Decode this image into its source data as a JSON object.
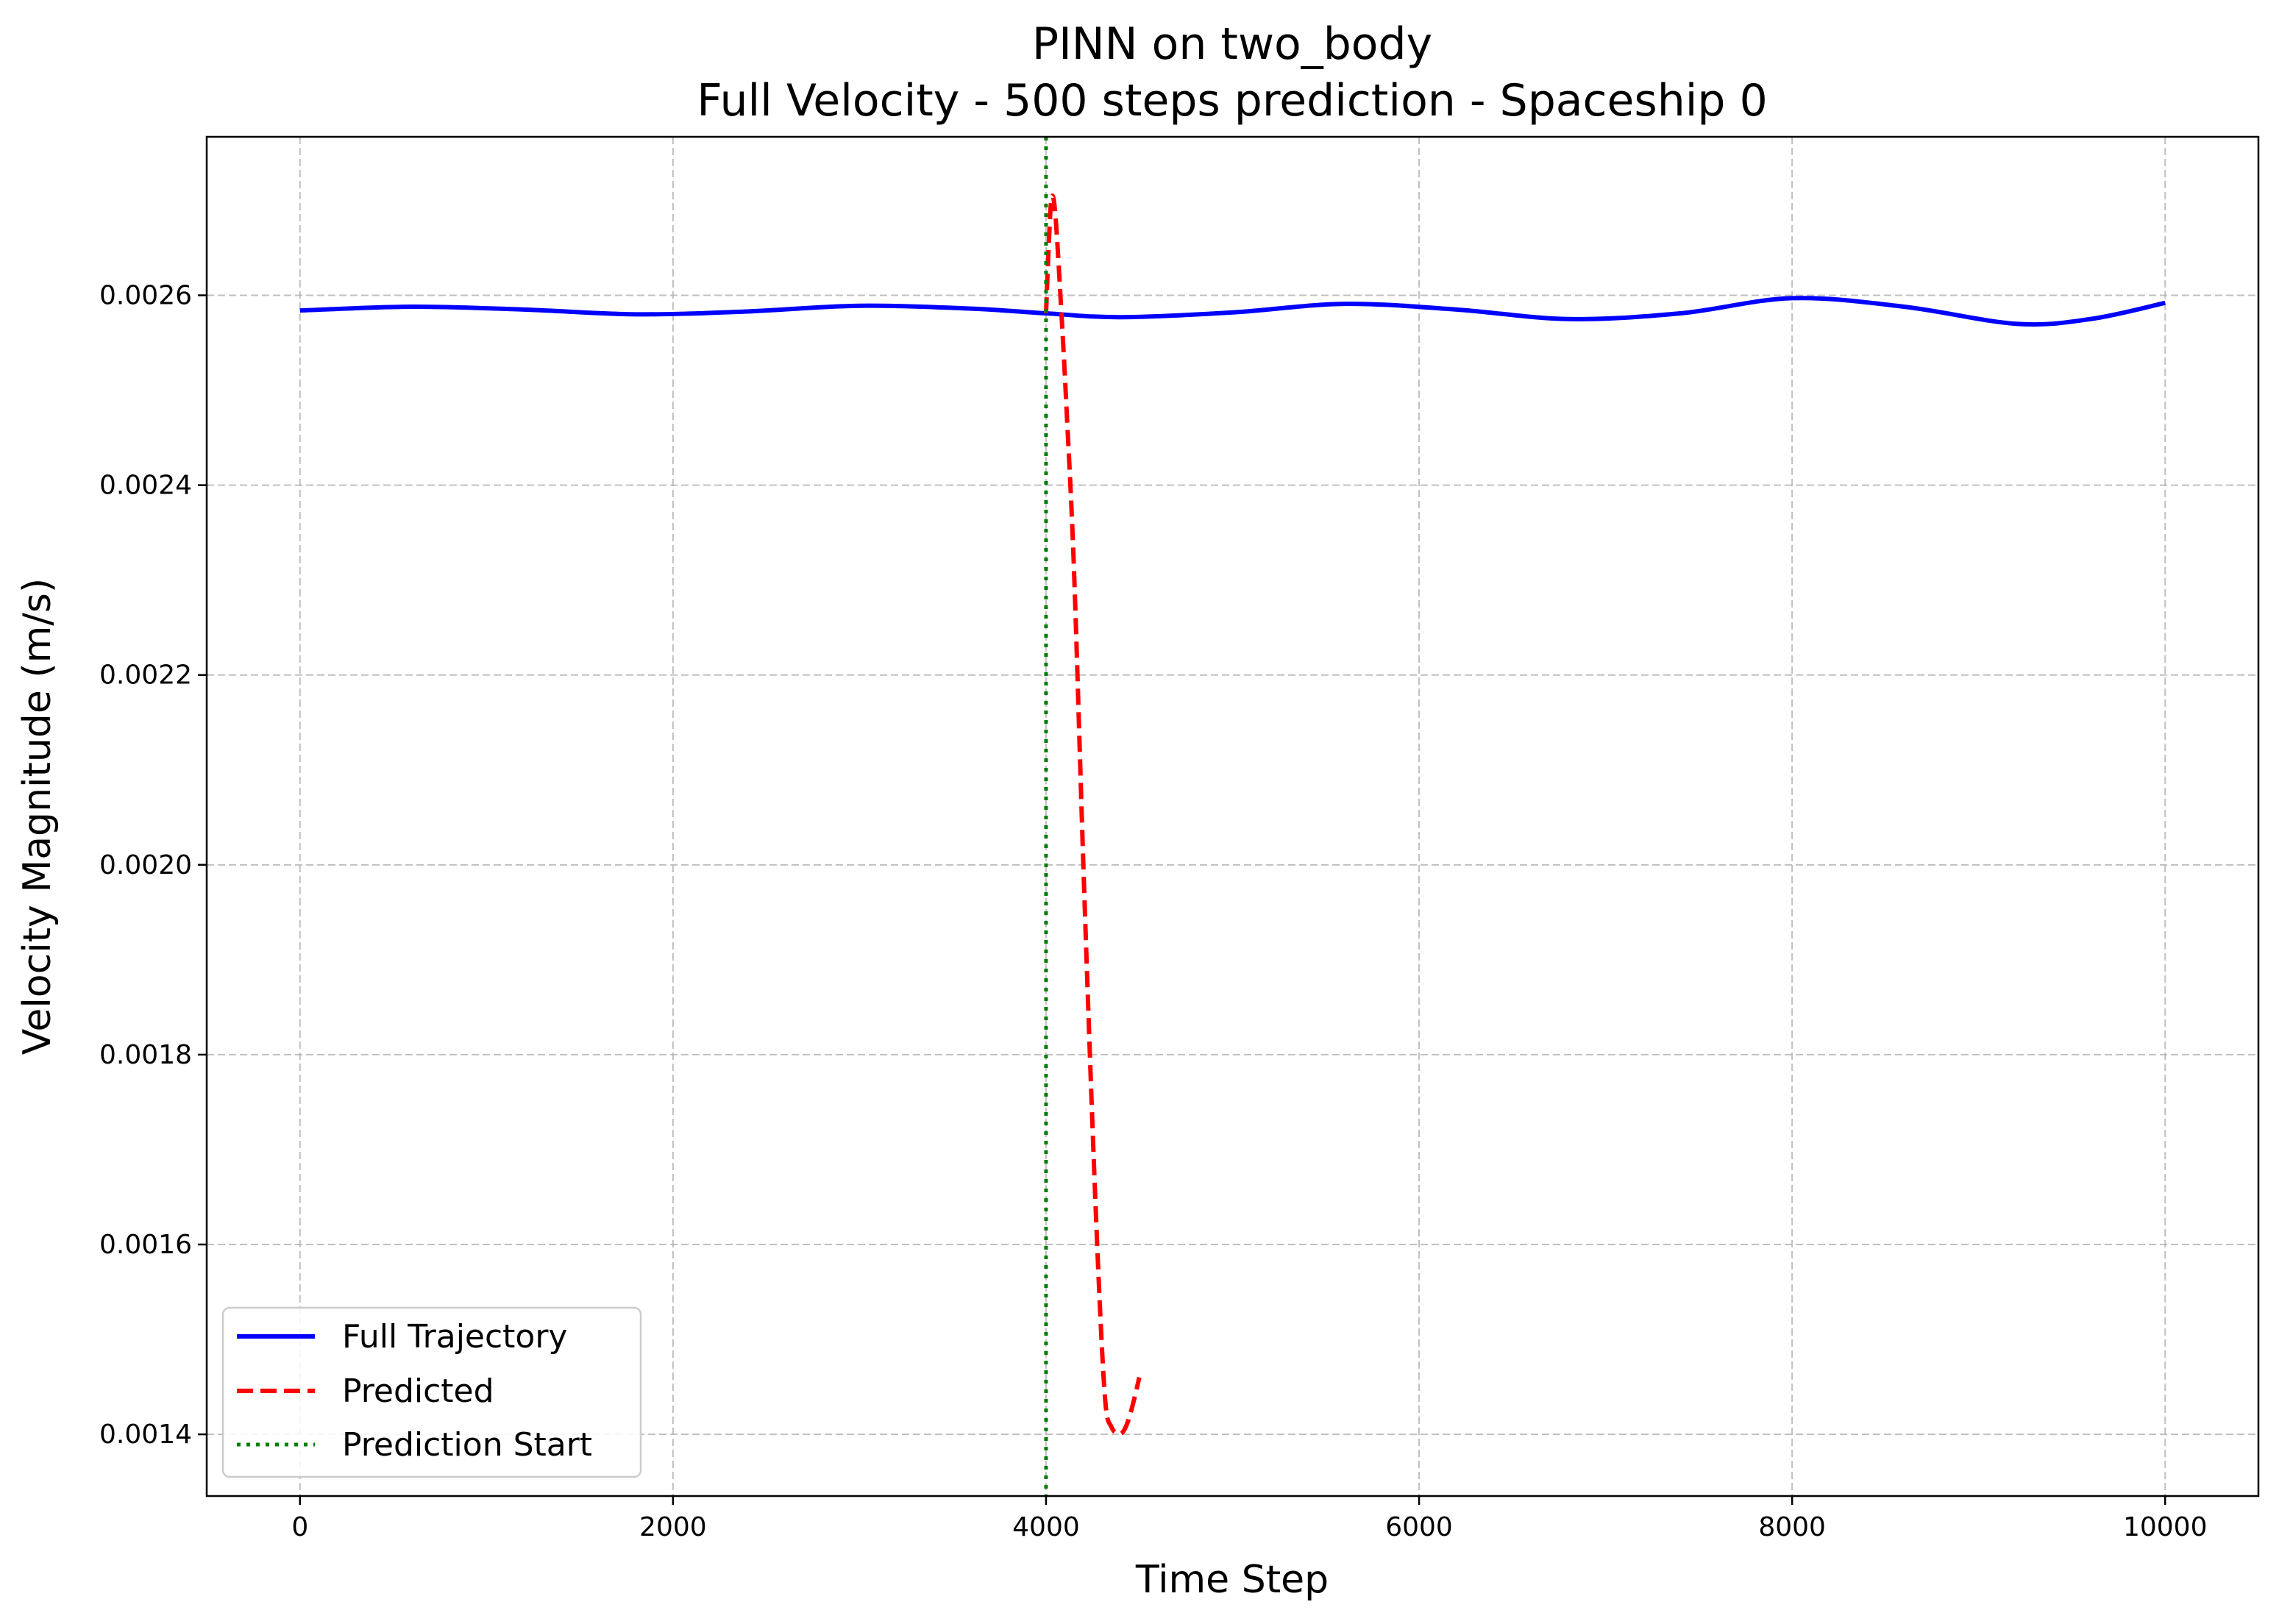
{
  "chart_data": {
    "type": "line",
    "title": "PINN on two_body",
    "subtitle": "Full Velocity - 500 steps prediction - Spaceship 0",
    "xlabel": "Time Step",
    "ylabel": "Velocity Magnitude (m/s)",
    "xlim": [
      -500,
      10500
    ],
    "ylim": [
      0.001335,
      0.002767
    ],
    "xticks": [
      0,
      2000,
      4000,
      6000,
      8000,
      10000
    ],
    "xtick_labels": [
      "0",
      "2000",
      "4000",
      "6000",
      "8000",
      "10000"
    ],
    "yticks": [
      0.0014,
      0.0016,
      0.0018,
      0.002,
      0.0022,
      0.0024,
      0.0026
    ],
    "ytick_labels": [
      "0.0014",
      "0.0016",
      "0.0018",
      "0.0020",
      "0.0022",
      "0.0024",
      "0.0026"
    ],
    "grid": true,
    "legend_position": "lower-left",
    "series": [
      {
        "name": "Full Trajectory",
        "color": "#0000ff",
        "style": "solid",
        "x": [
          0,
          600,
          1200,
          1800,
          2400,
          3000,
          3600,
          4000,
          4400,
          5000,
          5600,
          6200,
          6800,
          7400,
          8000,
          8600,
          9200,
          9600,
          10000
        ],
        "y": [
          0.002584,
          0.002588,
          0.002585,
          0.00258,
          0.002583,
          0.002589,
          0.002586,
          0.002581,
          0.002577,
          0.002582,
          0.002591,
          0.002585,
          0.002575,
          0.002581,
          0.002597,
          0.002588,
          0.00257,
          0.002575,
          0.002592
        ]
      },
      {
        "name": "Predicted",
        "color": "#ff0000",
        "style": "dashed",
        "x": [
          4000,
          4015,
          4030,
          4050,
          4080,
          4110,
          4150,
          4200,
          4250,
          4290,
          4320,
          4350,
          4380,
          4410,
          4440,
          4470,
          4500
        ],
        "y": [
          0.002581,
          0.002655,
          0.002703,
          0.002685,
          0.00259,
          0.00248,
          0.00231,
          0.002,
          0.00172,
          0.00153,
          0.00143,
          0.001408,
          0.001401,
          0.001402,
          0.001414,
          0.001435,
          0.00146
        ]
      }
    ],
    "vlines": [
      {
        "name": "Prediction Start",
        "x": 4000,
        "color": "#008000",
        "style": "dotted"
      }
    ]
  }
}
